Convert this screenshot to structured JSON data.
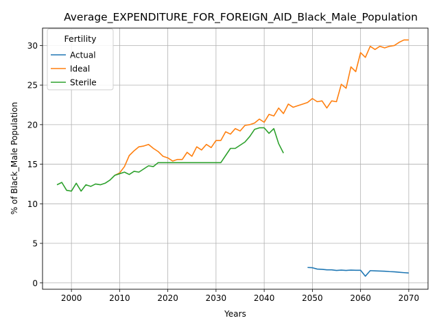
{
  "chart_data": {
    "type": "line",
    "title": "Average_EXPENDITURE_FOR_FOREIGN_AID_Black_Male_Population",
    "xlabel": "Years",
    "ylabel": "% of Black_Male Population",
    "xlim": [
      1994,
      2074
    ],
    "ylim": [
      -0.8,
      32.2
    ],
    "xticks": [
      2000,
      2010,
      2020,
      2030,
      2040,
      2050,
      2060,
      2070
    ],
    "yticks": [
      0,
      5,
      10,
      15,
      20,
      25,
      30
    ],
    "grid": true,
    "legend": {
      "title": "Fertility",
      "placement": "upper-left"
    },
    "series": [
      {
        "name": "Actual",
        "color": "#1f77b4",
        "x": [
          2049,
          2050,
          2051,
          2052,
          2053,
          2054,
          2055,
          2056,
          2057,
          2058,
          2059,
          2060,
          2061,
          2062,
          2063,
          2064,
          2065,
          2066,
          2067,
          2068,
          2069,
          2070
        ],
        "y": [
          1.95,
          1.92,
          1.75,
          1.72,
          1.65,
          1.65,
          1.58,
          1.62,
          1.58,
          1.62,
          1.6,
          1.6,
          0.85,
          1.55,
          1.52,
          1.5,
          1.48,
          1.43,
          1.4,
          1.35,
          1.3,
          1.25
        ]
      },
      {
        "name": "Ideal",
        "color": "#ff7f0e",
        "x": [
          2009,
          2010,
          2011,
          2012,
          2013,
          2014,
          2015,
          2016,
          2017,
          2018,
          2019,
          2020,
          2021,
          2022,
          2023,
          2024,
          2025,
          2026,
          2027,
          2028,
          2029,
          2030,
          2031,
          2032,
          2033,
          2034,
          2035,
          2036,
          2037,
          2038,
          2039,
          2040,
          2041,
          2042,
          2043,
          2044,
          2045,
          2046,
          2047,
          2048,
          2049,
          2050,
          2051,
          2052,
          2053,
          2054,
          2055,
          2056,
          2057,
          2058,
          2059,
          2060,
          2061,
          2062,
          2063,
          2064,
          2065,
          2066,
          2067,
          2068,
          2069,
          2070
        ],
        "y": [
          13.6,
          13.9,
          14.7,
          16.1,
          16.7,
          17.2,
          17.3,
          17.5,
          17.0,
          16.6,
          16.0,
          15.8,
          15.4,
          15.6,
          15.6,
          16.5,
          16.0,
          17.2,
          16.8,
          17.5,
          17.1,
          18.0,
          18.0,
          19.1,
          18.8,
          19.5,
          19.2,
          19.9,
          20.0,
          20.2,
          20.7,
          20.3,
          21.3,
          21.1,
          22.1,
          21.4,
          22.6,
          22.2,
          22.4,
          22.6,
          22.8,
          23.3,
          22.9,
          23.0,
          22.1,
          23.0,
          22.9,
          25.1,
          24.6,
          27.3,
          26.7,
          29.1,
          28.5,
          29.9,
          29.5,
          29.9,
          29.7,
          29.9,
          30.0,
          30.4,
          30.7,
          30.7
        ]
      },
      {
        "name": "Sterile",
        "color": "#2ca02c",
        "x": [
          1997,
          1998,
          1999,
          2000,
          2001,
          2002,
          2003,
          2004,
          2005,
          2006,
          2007,
          2008,
          2009,
          2010,
          2011,
          2012,
          2013,
          2014,
          2015,
          2016,
          2017,
          2018,
          2019,
          2020,
          2021,
          2022,
          2023,
          2024,
          2025,
          2026,
          2027,
          2028,
          2029,
          2030,
          2031,
          2032,
          2033,
          2034,
          2035,
          2036,
          2037,
          2038,
          2039,
          2040,
          2041,
          2042,
          2043,
          2044
        ],
        "y": [
          12.4,
          12.7,
          11.7,
          11.6,
          12.6,
          11.6,
          12.4,
          12.2,
          12.5,
          12.4,
          12.6,
          13.0,
          13.6,
          13.8,
          14.0,
          13.7,
          14.1,
          14.0,
          14.4,
          14.8,
          14.7,
          15.2,
          15.2,
          15.2,
          15.2,
          15.2,
          15.2,
          15.2,
          15.2,
          15.2,
          15.2,
          15.2,
          15.2,
          15.2,
          15.2,
          16.1,
          17.0,
          17.0,
          17.4,
          17.8,
          18.5,
          19.4,
          19.6,
          19.6,
          18.9,
          19.5,
          17.6,
          16.4
        ]
      }
    ]
  }
}
